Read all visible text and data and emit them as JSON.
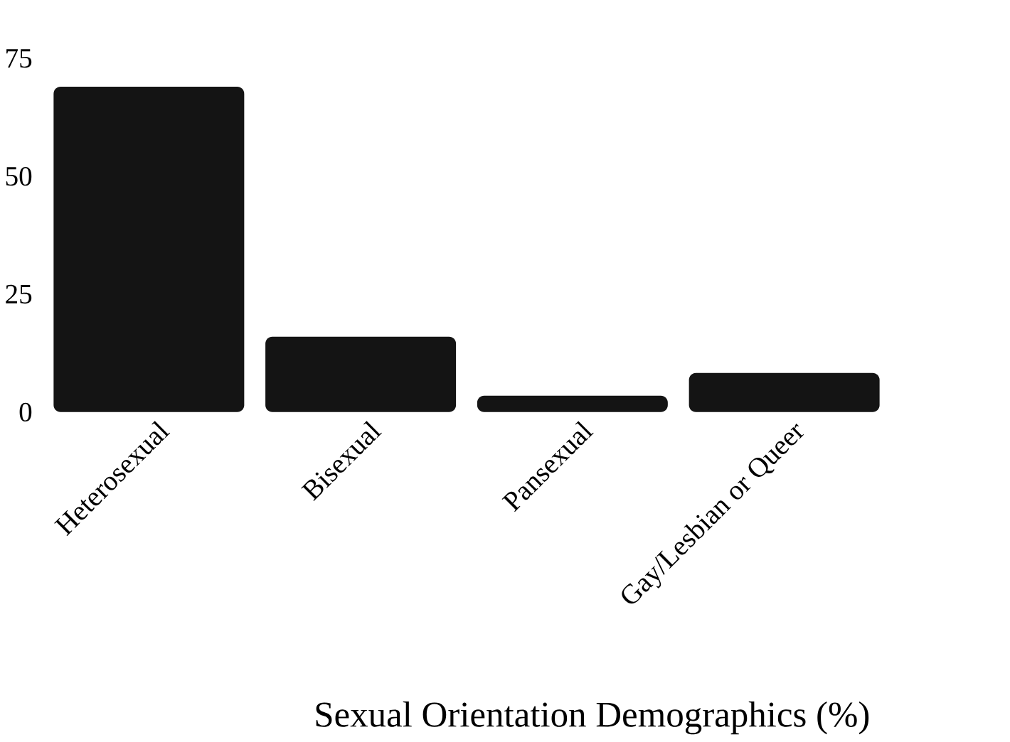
{
  "chart_data": {
    "type": "bar",
    "title": "Sexual Orientation Demographics (%)",
    "categories": [
      "Heterosexual",
      "Bisexual",
      "Pansexual",
      "Gay/Lesbian or Queer"
    ],
    "values": [
      69,
      16,
      3.5,
      8.3
    ],
    "color": "#141414",
    "ylim": [
      0,
      75
    ],
    "yticks": [
      0,
      25,
      50,
      75
    ]
  }
}
